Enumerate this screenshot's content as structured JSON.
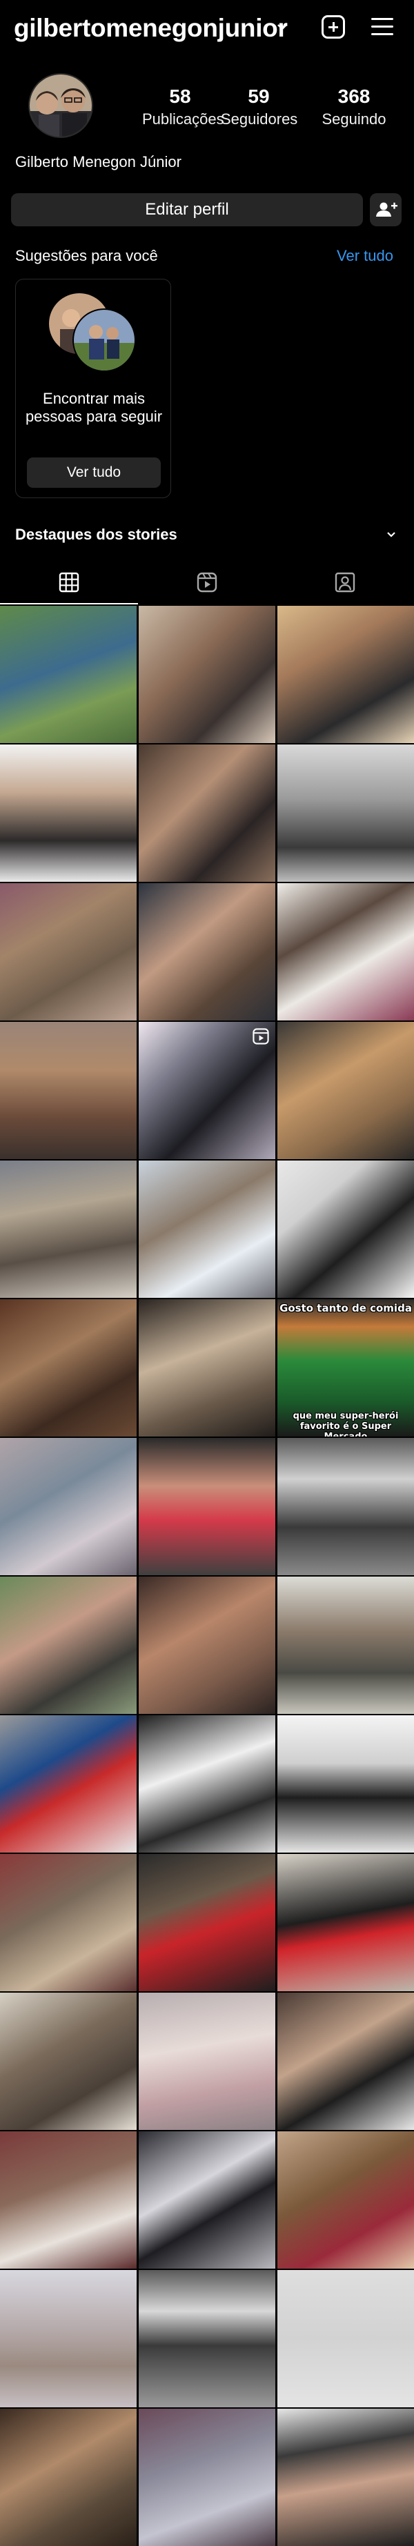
{
  "header": {
    "username": "gilbertomenegonjunior"
  },
  "profile": {
    "stats": [
      {
        "value": "58",
        "label": "Publicações"
      },
      {
        "value": "59",
        "label": "Seguidores"
      },
      {
        "value": "368",
        "label": "Seguindo"
      }
    ],
    "full_name": "Gilberto Menegon Júnior",
    "edit_label": "Editar perfil"
  },
  "suggestions": {
    "title": "Sugestões para você",
    "see_all": "Ver tudo",
    "card_text": "Encontrar mais pessoas para seguir",
    "card_button": "Ver tudo"
  },
  "highlights": {
    "title": "Destaques dos stories"
  },
  "colors": {
    "background": "#000000",
    "button_bg": "#262626",
    "link": "#3897f0"
  },
  "grid": {
    "tiles": [
      {
        "bg": "linear-gradient(160deg,#5f8a4a 0%,#3d6b8e 45%,#7a9c55 70%,#4b6b3a 100%)"
      },
      {
        "bg": "linear-gradient(135deg,#c9b9a6 0%,#8a6a55 40%,#3a3230 70%,#d8c8b8 100%)"
      },
      {
        "bg": "linear-gradient(150deg,#d9b98a 0%,#a3795a 35%,#2a2a2c 70%,#e6d2b5 100%)"
      },
      {
        "bg": "linear-gradient(180deg,#f2f2f2 0%,#c4a891 35%,#2d2a2a 70%,#eaeaea 100%)"
      },
      {
        "bg": "linear-gradient(135deg,#4a3a30 0%,#b48f76 40%,#2a2424 70%,#8a6f5c 100%)"
      },
      {
        "bg": "linear-gradient(180deg,#d9d9d9 0%,#9a9a9a 40%,#3a3a3a 75%,#bdbdbd 100%)"
      },
      {
        "bg": "linear-gradient(150deg,#8a5a6a 0%,#a28469 35%,#6e5c4b 65%,#c2a898 100%)"
      },
      {
        "bg": "linear-gradient(140deg,#2c3440 0%,#c19a82 40%,#5a4638 70%,#2b2f37 100%)"
      },
      {
        "bg": "linear-gradient(150deg,#f0ede8 0%,#5b4a40 35%,#ece9e4 60%,#8a3a55 100%)"
      },
      {
        "bg": "linear-gradient(180deg,#9a8478 0%,#b08a6a 35%,#6a4a3a 70%,#3a302c 100%)"
      },
      {
        "bg": "linear-gradient(135deg,#efe7ef 0%,#7a7a8a 30%,#1c1c22 60%,#b0a8b8 100%)",
        "reel": true
      },
      {
        "bg": "linear-gradient(150deg,#3a3836 0%,#c79a6a 40%,#8a6a4a 70%,#2a2826 100%)"
      },
      {
        "bg": "linear-gradient(170deg,#7a7f8a 0%,#b2a591 35%,#5a4f46 65%,#d6d1c8 100%)"
      },
      {
        "bg": "linear-gradient(150deg,#c8d2dc 0%,#8a7a6a 40%,#e8eef4 70%,#6a6a72 100%)"
      },
      {
        "bg": "linear-gradient(140deg,#e8e8e8 0%,#d0d0d0 30%,#1e1e1e 60%,#f5f5f5 100%)"
      },
      {
        "bg": "linear-gradient(150deg,#5a3422 0%,#a07a5a 40%,#3e2a20 70%,#6a4a34 100%)"
      },
      {
        "bg": "linear-gradient(160deg,#2a2420 0%,#c6b29a 40%,#6a5a4a 70%,#201c1a 100%)"
      },
      {
        "bg": "linear-gradient(180deg,#2a2a2a 0%,#c47a3a 20%,#2a8a3a 45%,#1a5a2a 75%,#1a1a1a 100%)",
        "meme_top": "Gosto tanto de comida",
        "meme_bottom": "que meu super-herói favorito é o Super Mercado"
      },
      {
        "bg": "linear-gradient(150deg,#b0a4a8 0%,#7a8a9a 40%,#d2cad0 70%,#6a6470 100%)"
      },
      {
        "bg": "linear-gradient(180deg,#2a2a2a 0%,#c98f7a 35%,#d43a4a 60%,#404040 100%)"
      },
      {
        "bg": "linear-gradient(180deg,#5a5a5a 0%,#d0d0d0 30%,#3a3a3a 65%,#8a8a8a 100%)"
      },
      {
        "bg": "linear-gradient(150deg,#6a8a5a 0%,#c49a86 40%,#3a3a36 70%,#8a9a7a 100%)"
      },
      {
        "bg": "linear-gradient(150deg,#3a2a26 0%,#b8866a 40%,#7a5a4a 70%,#2a2220 100%)"
      },
      {
        "bg": "linear-gradient(180deg,#dcdcd6 0%,#8a7a6a 40%,#4a4a44 70%,#c8c6bc 100%)"
      },
      {
        "bg": "linear-gradient(150deg,#9a9a9a 0%,#1e4a8a 35%,#c82a2a 55%,#e8e8e8 100%)"
      },
      {
        "bg": "linear-gradient(160deg,#1e1e1e 0%,#f0f0f0 40%,#2a2a2a 70%,#d8d8d8 100%)"
      },
      {
        "bg": "linear-gradient(180deg,#f4f4f4 0%,#cfcfcf 35%,#1e1e1e 60%,#e6e6e6 100%)"
      },
      {
        "bg": "linear-gradient(150deg,#8a3a3a 0%,#7a6a5a 40%,#c8b49a 70%,#5a3030 100%)"
      },
      {
        "bg": "linear-gradient(160deg,#2a2a2a 0%,#6a5a4a 35%,#c8242a 55%,#1e1e1e 100%)"
      },
      {
        "bg": "linear-gradient(170deg,#d8d2c8 0%,#1e1e1e 45%,#d0242a 60%,#bcb6aa 100%)"
      },
      {
        "bg": "linear-gradient(150deg,#d6d0c4 0%,#7a6a5a 40%,#4a4038 70%,#e6e0d6 100%)"
      },
      {
        "bg": "linear-gradient(170deg,#b8aeb0 0%,#e8dcd8 40%,#c2a0a4 70%,#8a8084 100%)"
      },
      {
        "bg": "linear-gradient(150deg,#4a3a34 0%,#c2a28a 40%,#1e1e1e 65%,#e8e8e8 100%)"
      },
      {
        "bg": "linear-gradient(160deg,#7a3a3a 0%,#8a6a5a 40%,#e8e2dc 70%,#5a2a2a 100%)"
      },
      {
        "bg": "linear-gradient(150deg,#2a2a30 0%,#d6d6dc 40%,#1e1e22 60%,#b8b8be 100%)"
      },
      {
        "bg": "linear-gradient(150deg,#c2a48a 0%,#7a5a3a 40%,#9a2a3a 70%,#e2c6a8 100%)"
      },
      {
        "bg": "linear-gradient(180deg,#d8d8e0 0%,#b4a8a8 45%,#9a8a80 70%,#c8c0c4 100%)"
      },
      {
        "bg": "linear-gradient(180deg,#5a5a5a 0%,#d8d8d8 30%,#3a3a3a 55%,#9a9a9a 100%)"
      },
      {
        "bg": "linear-gradient(180deg,#dedede 0%,#d2d2d2 50%,#e4e4e4 100%)"
      },
      {
        "bg": "linear-gradient(150deg,#3a2a20 0%,#b08a6a 40%,#5a4a3a 70%,#2a2018 100%)"
      },
      {
        "bg": "linear-gradient(160deg,#6a4a5a 0%,#8a8a9a 40%,#c4c4d0 70%,#4a3a44 100%)"
      },
      {
        "bg": "linear-gradient(170deg,#e6e6e6 0%,#3a3a3a 30%,#c8a08a 55%,#1e1e1e 100%)"
      }
    ]
  }
}
